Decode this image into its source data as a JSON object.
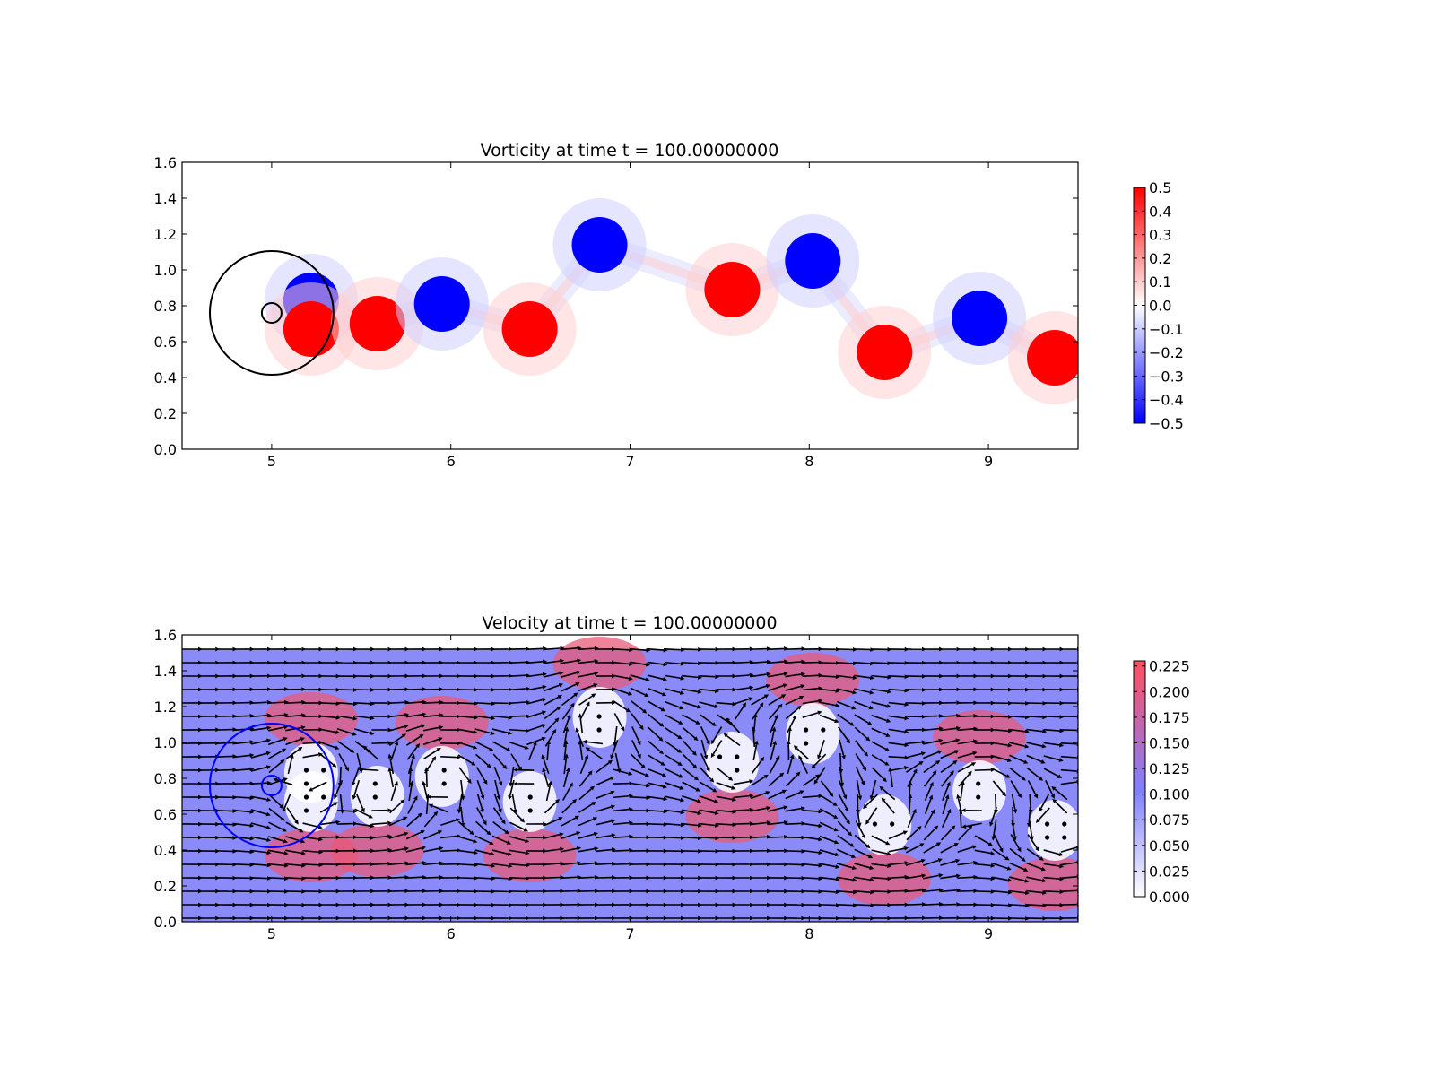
{
  "chart_data": [
    {
      "type": "heatmap",
      "title": "Vorticity at time t =   100.00000000",
      "xlim": [
        4.5,
        9.5
      ],
      "ylim": [
        0.0,
        1.6
      ],
      "x_ticks": [
        "5",
        "6",
        "7",
        "8",
        "9"
      ],
      "y_ticks": [
        "0.0",
        "0.2",
        "0.4",
        "0.6",
        "0.8",
        "1.0",
        "1.2",
        "1.4",
        "1.6"
      ],
      "colorbar": {
        "min": -0.5,
        "max": 0.5,
        "colors": [
          "#0000ff",
          "#ffffff",
          "#ff0000"
        ],
        "ticks": [
          "−0.5",
          "−0.4",
          "−0.3",
          "−0.2",
          "−0.1",
          "0.0",
          "0.1",
          "0.2",
          "0.3",
          "0.4",
          "0.5"
        ]
      },
      "vortices": [
        {
          "x": 5.22,
          "y": 0.83,
          "v": -0.5
        },
        {
          "x": 5.22,
          "y": 0.67,
          "v": 0.5
        },
        {
          "x": 5.59,
          "y": 0.7,
          "v": 0.5
        },
        {
          "x": 5.95,
          "y": 0.81,
          "v": -0.5
        },
        {
          "x": 6.44,
          "y": 0.67,
          "v": 0.5
        },
        {
          "x": 6.83,
          "y": 1.14,
          "v": -0.5
        },
        {
          "x": 7.57,
          "y": 0.89,
          "v": 0.5
        },
        {
          "x": 8.02,
          "y": 1.05,
          "v": -0.5
        },
        {
          "x": 8.42,
          "y": 0.54,
          "v": 0.5
        },
        {
          "x": 8.95,
          "y": 0.73,
          "v": -0.5
        },
        {
          "x": 9.37,
          "y": 0.51,
          "v": 0.5
        }
      ],
      "circles": [
        {
          "cx": 5.0,
          "cy": 0.76,
          "r": 0.345,
          "color": "#000000"
        },
        {
          "cx": 5.0,
          "cy": 0.76,
          "r": 0.055,
          "color": "#000000"
        }
      ]
    },
    {
      "type": "heatmap",
      "title": "Velocity at time t =   100.00000000",
      "xlim": [
        4.5,
        9.5
      ],
      "ylim": [
        0.0,
        1.6
      ],
      "data_ymax": 1.52,
      "x_ticks": [
        "5",
        "6",
        "7",
        "8",
        "9"
      ],
      "y_ticks": [
        "0.0",
        "0.2",
        "0.4",
        "0.6",
        "0.8",
        "1.0",
        "1.2",
        "1.4",
        "1.6"
      ],
      "background_speed": 0.1,
      "colorbar": {
        "min": 0.0,
        "max": 0.23,
        "colors": [
          "#ffffff",
          "#8080ff",
          "#ff5060"
        ],
        "ticks": [
          "0.000",
          "0.025",
          "0.050",
          "0.075",
          "0.100",
          "0.125",
          "0.150",
          "0.175",
          "0.200",
          "0.225"
        ]
      },
      "circles": [
        {
          "cx": 5.0,
          "cy": 0.76,
          "r": 0.345,
          "color": "#0000ff"
        },
        {
          "cx": 5.0,
          "cy": 0.76,
          "r": 0.055,
          "color": "#0000ff"
        }
      ]
    }
  ]
}
